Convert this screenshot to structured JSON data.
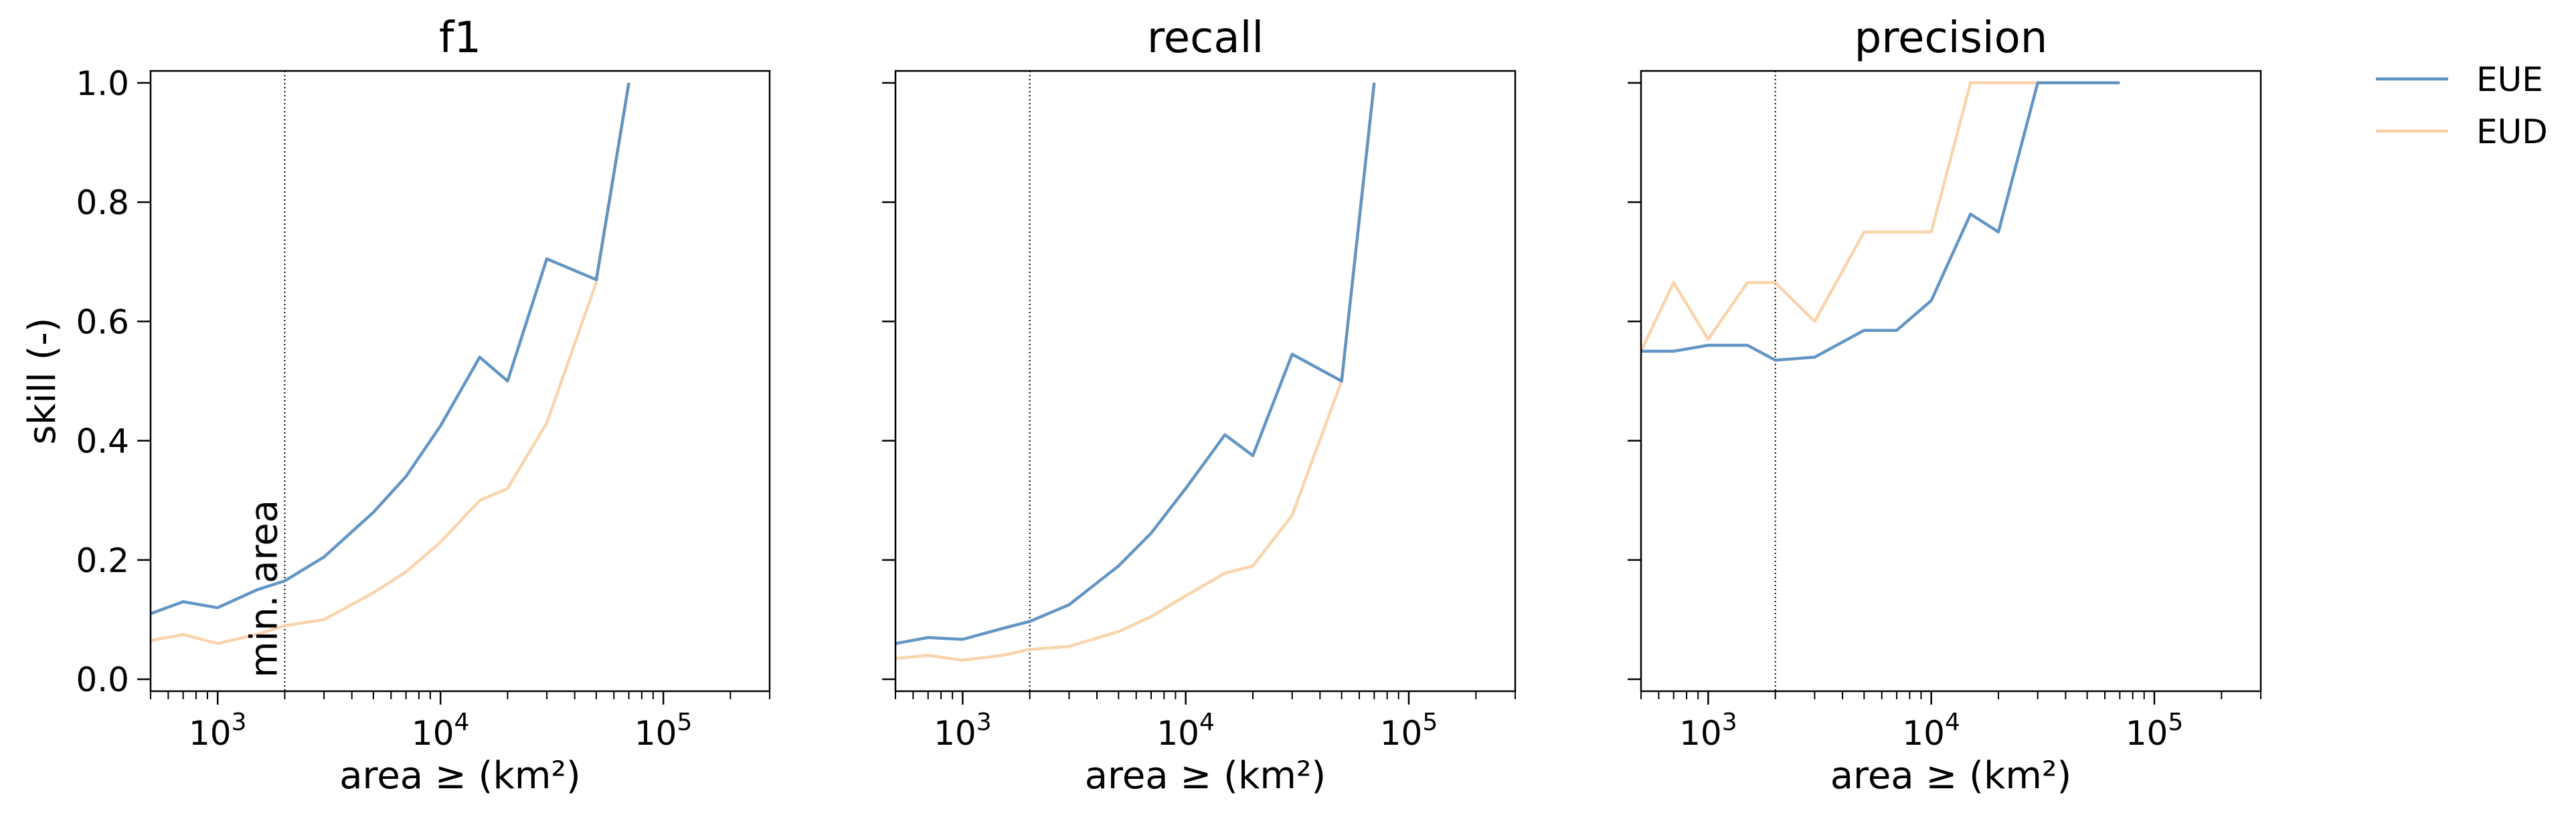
{
  "figure": {
    "ylabel": "skill (-)",
    "yticks": [
      "0.0",
      "0.2",
      "0.4",
      "0.6",
      "0.8",
      "1.0"
    ],
    "xticks": [
      "10",
      "10",
      "10"
    ],
    "xtick_exponents": [
      "3",
      "4",
      "5"
    ],
    "annotation": "min. area"
  },
  "legend": {
    "placement": "top-right, outside plots",
    "items": [
      {
        "label": "EUE",
        "color": "#5b8fc1"
      },
      {
        "label": "EUD",
        "color": "#f9cfa3"
      }
    ]
  },
  "chart_data": [
    {
      "type": "line",
      "title": "f1",
      "xlabel": "area ≥ (km²)",
      "ylabel": "skill (-)",
      "xscale": "log",
      "xlim": [
        500,
        300000
      ],
      "ylim": [
        -0.02,
        1.02
      ],
      "vline_x": 2000,
      "series": [
        {
          "name": "EUE",
          "color": "#5b8fc1",
          "x": [
            500,
            700,
            1000,
            1500,
            2000,
            3000,
            5000,
            7000,
            10000,
            15000,
            20000,
            30000,
            50000,
            70000
          ],
          "y": [
            0.11,
            0.13,
            0.12,
            0.15,
            0.165,
            0.205,
            0.28,
            0.34,
            0.425,
            0.54,
            0.5,
            0.705,
            0.67,
            1.0
          ]
        },
        {
          "name": "EUD",
          "color": "#f9cfa3",
          "x": [
            500,
            700,
            1000,
            1500,
            2000,
            3000,
            5000,
            7000,
            10000,
            15000,
            20000,
            30000,
            50000,
            70000
          ],
          "y": [
            0.065,
            0.075,
            0.06,
            0.075,
            0.09,
            0.1,
            0.145,
            0.18,
            0.23,
            0.3,
            0.32,
            0.43,
            0.665,
            1.0
          ]
        }
      ]
    },
    {
      "type": "line",
      "title": "recall",
      "xlabel": "area ≥ (km²)",
      "xscale": "log",
      "xlim": [
        500,
        300000
      ],
      "ylim": [
        -0.02,
        1.02
      ],
      "vline_x": 2000,
      "series": [
        {
          "name": "EUE",
          "color": "#5b8fc1",
          "x": [
            500,
            700,
            1000,
            1500,
            2000,
            3000,
            5000,
            7000,
            10000,
            15000,
            20000,
            30000,
            50000,
            70000
          ],
          "y": [
            0.06,
            0.07,
            0.067,
            0.085,
            0.097,
            0.125,
            0.19,
            0.245,
            0.32,
            0.41,
            0.375,
            0.545,
            0.5,
            1.0
          ]
        },
        {
          "name": "EUD",
          "color": "#f9cfa3",
          "x": [
            500,
            700,
            1000,
            1500,
            2000,
            3000,
            5000,
            7000,
            10000,
            15000,
            20000,
            30000,
            50000,
            70000
          ],
          "y": [
            0.035,
            0.04,
            0.032,
            0.04,
            0.05,
            0.055,
            0.08,
            0.105,
            0.14,
            0.178,
            0.19,
            0.275,
            0.5,
            1.0
          ]
        }
      ]
    },
    {
      "type": "line",
      "title": "precision",
      "xlabel": "area ≥ (km²)",
      "xscale": "log",
      "xlim": [
        500,
        300000
      ],
      "ylim": [
        -0.02,
        1.02
      ],
      "vline_x": 2000,
      "series": [
        {
          "name": "EUE",
          "color": "#5b8fc1",
          "x": [
            500,
            700,
            1000,
            1500,
            2000,
            3000,
            5000,
            7000,
            10000,
            15000,
            20000,
            30000,
            50000,
            70000
          ],
          "y": [
            0.55,
            0.55,
            0.56,
            0.56,
            0.535,
            0.54,
            0.585,
            0.585,
            0.635,
            0.78,
            0.75,
            1.0,
            1.0,
            1.0
          ]
        },
        {
          "name": "EUD",
          "color": "#f9cfa3",
          "x": [
            500,
            700,
            1000,
            1500,
            2000,
            3000,
            5000,
            7000,
            10000,
            15000,
            20000,
            30000,
            50000,
            70000
          ],
          "y": [
            0.55,
            0.665,
            0.57,
            0.665,
            0.665,
            0.6,
            0.75,
            0.75,
            0.75,
            1.0,
            1.0,
            1.0,
            1.0,
            1.0
          ]
        }
      ]
    }
  ]
}
